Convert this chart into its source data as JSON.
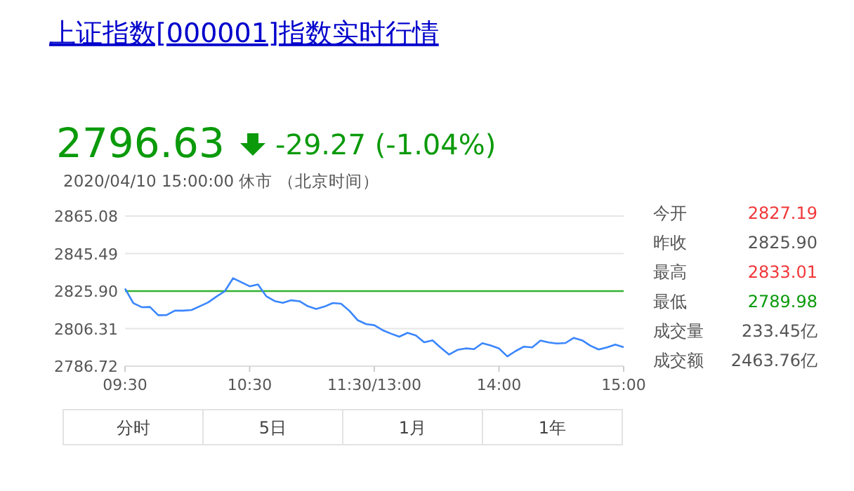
{
  "chart_data": {
    "type": "line",
    "title": "上证指数[000001]指数实时行情",
    "categories": [
      "09:30",
      null,
      null,
      null,
      null,
      null,
      null,
      null,
      null,
      null,
      null,
      null,
      null,
      null,
      null,
      "10:30",
      null,
      null,
      null,
      null,
      null,
      null,
      null,
      null,
      null,
      null,
      null,
      null,
      null,
      null,
      "11:30/13:00",
      null,
      null,
      null,
      null,
      null,
      null,
      null,
      null,
      null,
      null,
      null,
      null,
      null,
      null,
      "14:00",
      null,
      null,
      null,
      null,
      null,
      null,
      null,
      null,
      null,
      null,
      null,
      null,
      null,
      null,
      "15:00"
    ],
    "series": [
      {
        "color": "#3a86ff",
        "values": [
          2827.2,
          2819.6,
          2817.5,
          2817.6,
          2813.3,
          2813.4,
          2815.7,
          2815.7,
          2816.0,
          2818.0,
          2820.0,
          2823.0,
          2825.8,
          2832.6,
          2830.5,
          2828.4,
          2829.4,
          2823.2,
          2820.7,
          2819.8,
          2821.1,
          2820.6,
          2818.0,
          2816.6,
          2817.8,
          2819.7,
          2819.3,
          2815.6,
          2810.7,
          2808.7,
          2808.1,
          2805.5,
          2803.7,
          2802.1,
          2804.1,
          2802.7,
          2799.2,
          2800.2,
          2796.3,
          2792.8,
          2795.2,
          2796.0,
          2795.6,
          2798.7,
          2797.5,
          2796.0,
          2791.8,
          2794.6,
          2796.9,
          2796.5,
          2800.1,
          2799.1,
          2798.5,
          2798.8,
          2801.5,
          2800.2,
          2797.4,
          2795.4,
          2796.5,
          2798.0,
          2796.6
        ]
      }
    ],
    "ylim": [
      2786.72,
      2865.08
    ],
    "yticks": [
      {
        "value": 2786.72,
        "label": "2786.72"
      },
      {
        "value": 2806.31,
        "label": "2806.31"
      },
      {
        "value": 2825.9,
        "label": "2825.90"
      },
      {
        "value": 2845.49,
        "label": "2845.49"
      },
      {
        "value": 2865.08,
        "label": "2865.08"
      }
    ],
    "grid": "y",
    "line_style": "solid",
    "ref_lines": [
      {
        "axis": "y",
        "value": 2825.9,
        "color": "#33b233",
        "line_style": "solid"
      }
    ],
    "annotations": [
      "2796.63",
      "-29.27 (-1.04%)",
      "2020/04/10 15:00:00  休市  （北京时间）",
      "今开",
      "2827.19",
      "昨收",
      "2825.90",
      "最高",
      "2833.01",
      "最低",
      "2789.98",
      "成交量",
      "233.45亿",
      "成交额",
      "2463.76亿",
      "分时",
      "5日",
      "1月",
      "1年"
    ]
  }
}
